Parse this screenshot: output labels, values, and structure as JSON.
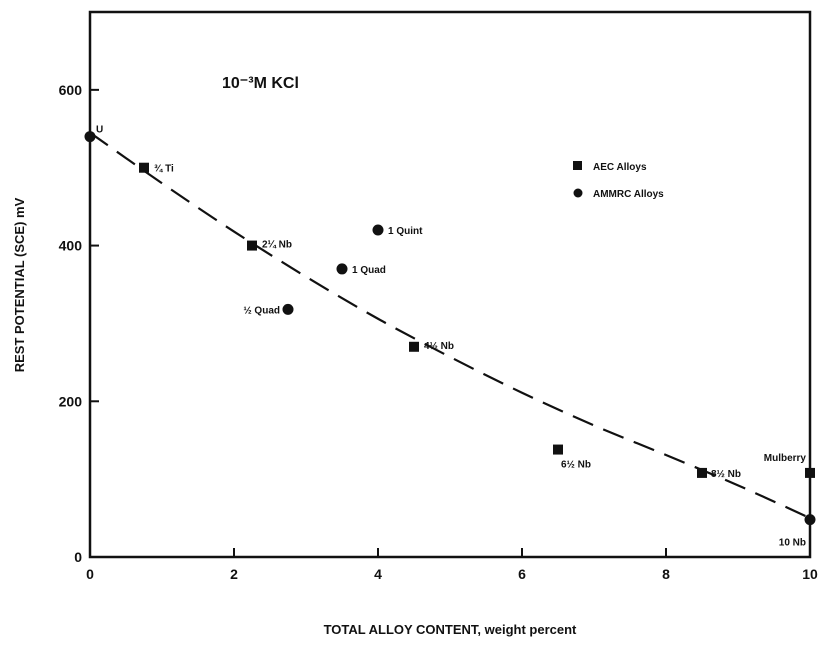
{
  "chart_data": {
    "type": "scatter",
    "annotation": "10⁻³M  KCl",
    "xlabel": "TOTAL ALLOY CONTENT,  weight percent",
    "ylabel": "REST POTENTIAL (SCE)  mV",
    "xlim": [
      0,
      10
    ],
    "ylim": [
      0,
      700
    ],
    "x_ticks": [
      0,
      2,
      4,
      6,
      8,
      10
    ],
    "y_ticks": [
      0,
      200,
      400,
      600
    ],
    "grid": false,
    "legend_position": "upper-right",
    "series": [
      {
        "name": "AEC Alloys",
        "marker": "square",
        "points": [
          {
            "label": "¾ Ti",
            "x": 0.75,
            "y": 500
          },
          {
            "label": "2¼ Nb",
            "x": 2.25,
            "y": 400
          },
          {
            "label": "4½ Nb",
            "x": 4.5,
            "y": 270
          },
          {
            "label": "6½ Nb",
            "x": 6.5,
            "y": 138
          },
          {
            "label": "8½ Nb",
            "x": 8.5,
            "y": 108
          },
          {
            "label": "Mulberry",
            "x": 10,
            "y": 108
          }
        ]
      },
      {
        "name": "AMMRC Alloys",
        "marker": "circle",
        "points": [
          {
            "label": "U",
            "x": 0,
            "y": 540
          },
          {
            "label": "½ Quad",
            "x": 2.75,
            "y": 318
          },
          {
            "label": "1 Quad",
            "x": 3.5,
            "y": 370
          },
          {
            "label": "1 Quint",
            "x": 4.0,
            "y": 420
          },
          {
            "label": "10 Nb",
            "x": 10,
            "y": 48
          }
        ]
      }
    ],
    "fit_curve": {
      "style": "dashed",
      "x": [
        0,
        1,
        2,
        3,
        4,
        5,
        6,
        7,
        8,
        9,
        10
      ],
      "y": [
        545,
        480,
        418,
        360,
        306,
        257,
        211,
        169,
        131,
        92,
        50
      ]
    }
  }
}
